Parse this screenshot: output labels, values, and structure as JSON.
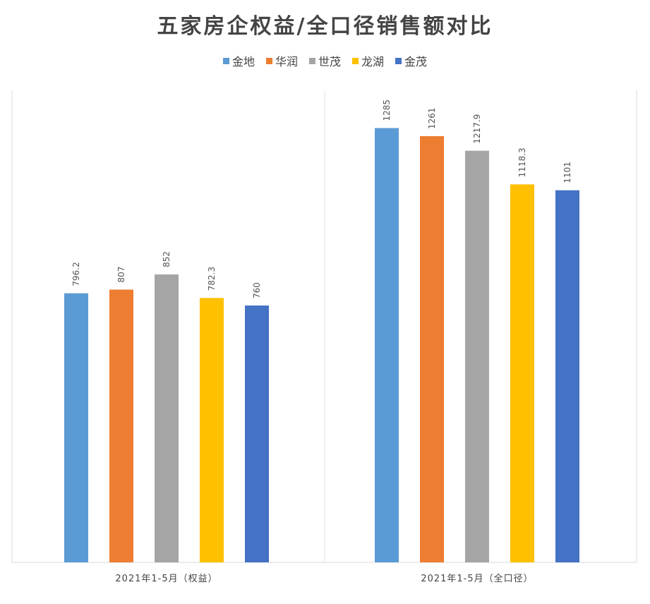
{
  "chart_data": {
    "type": "bar",
    "title": "五家房企权益/全口径销售额对比",
    "categories": [
      "2021年1-5月（权益）",
      "2021年1-5月（全口径）"
    ],
    "series": [
      {
        "name": "金地",
        "color": "#5B9BD5",
        "values": [
          796.2,
          1285
        ]
      },
      {
        "name": "华润",
        "color": "#ED7D31",
        "values": [
          807,
          1261
        ]
      },
      {
        "name": "世茂",
        "color": "#A5A5A5",
        "values": [
          852,
          1217.9
        ]
      },
      {
        "name": "龙湖",
        "color": "#FFC000",
        "values": [
          782.3,
          1118.3
        ]
      },
      {
        "name": "金茂",
        "color": "#4472C4",
        "values": [
          760,
          1101
        ]
      }
    ],
    "data_labels": [
      [
        "796.2",
        "1285"
      ],
      [
        "807",
        "1261"
      ],
      [
        "852",
        "1217.9"
      ],
      [
        "782.3",
        "1118.3"
      ],
      [
        "760",
        "1101"
      ]
    ],
    "xlabel": "",
    "ylabel": "",
    "ylim": [
      0,
      1400
    ],
    "grid": false,
    "legend_position": "top"
  }
}
